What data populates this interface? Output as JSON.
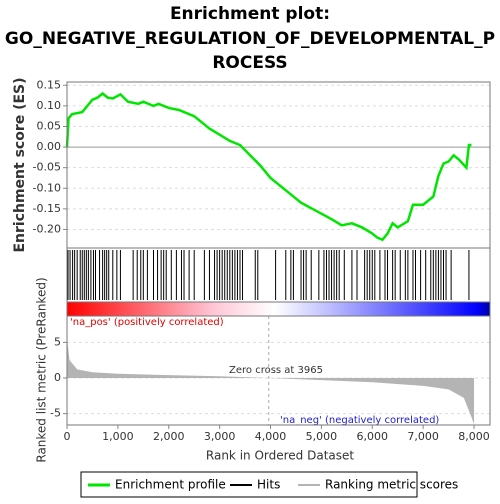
{
  "chart_data": [
    {
      "type": "line",
      "title": "Enrichment plot:",
      "subtitle": "GO_NEGATIVE_REGULATION_OF_DEVELOPMENTAL_P",
      "subtitle2": "ROCESS",
      "ylabel": "Enrichment score (ES)",
      "grid": true,
      "xlim": [
        0,
        8314
      ],
      "ylim": [
        -0.245,
        0.158
      ],
      "yticks": [
        {
          "value": 0.15,
          "label": "0.15"
        },
        {
          "value": 0.1,
          "label": "0.10"
        },
        {
          "value": 0.05,
          "label": "0.05"
        },
        {
          "value": 0,
          "label": "0.00"
        },
        {
          "value": -0.05,
          "label": "-0.05"
        },
        {
          "value": -0.1,
          "label": "-0.10"
        },
        {
          "value": -0.15,
          "label": "-0.15"
        },
        {
          "value": -0.2,
          "label": "-0.20"
        }
      ],
      "x": [
        0,
        30,
        100,
        300,
        400,
        500,
        600,
        700,
        800,
        900,
        1050,
        1200,
        1400,
        1500,
        1700,
        1800,
        2000,
        2200,
        2500,
        2800,
        3000,
        3200,
        3400,
        3600,
        3800,
        4000,
        4300,
        4600,
        4900,
        5200,
        5400,
        5600,
        5800,
        6000,
        6100,
        6200,
        6300,
        6400,
        6500,
        6700,
        6800,
        7000,
        7100,
        7200,
        7300,
        7400,
        7500,
        7600,
        7700,
        7850,
        7900,
        7950
      ],
      "series": [
        {
          "name": "Enrichment profile",
          "color": "#00e600",
          "values": [
            0,
            0.07,
            0.08,
            0.085,
            0.1,
            0.115,
            0.12,
            0.13,
            0.12,
            0.118,
            0.128,
            0.11,
            0.105,
            0.11,
            0.1,
            0.105,
            0.095,
            0.09,
            0.075,
            0.045,
            0.03,
            0.015,
            0.005,
            -0.02,
            -0.045,
            -0.075,
            -0.105,
            -0.135,
            -0.155,
            -0.175,
            -0.19,
            -0.185,
            -0.195,
            -0.21,
            -0.22,
            -0.225,
            -0.21,
            -0.185,
            -0.195,
            -0.18,
            -0.14,
            -0.14,
            -0.13,
            -0.12,
            -0.07,
            -0.04,
            -0.035,
            -0.02,
            -0.03,
            -0.05,
            0.005,
            0.005
          ]
        }
      ]
    },
    {
      "type": "rug",
      "xlim": [
        0,
        8314
      ],
      "series": [
        {
          "name": "Hits",
          "color": "#000000",
          "x": [
            20,
            60,
            110,
            150,
            200,
            260,
            300,
            340,
            380,
            420,
            470,
            520,
            560,
            640,
            700,
            740,
            780,
            820,
            900,
            980,
            1050,
            1300,
            1380,
            1450,
            1500,
            1580,
            1700,
            1780,
            1850,
            1900,
            1950,
            2050,
            2150,
            2250,
            2300,
            2400,
            2500,
            2700,
            2800,
            2900,
            2950,
            3000,
            3050,
            3100,
            3150,
            3200,
            3250,
            3300,
            3350,
            3400,
            3450,
            3700,
            3750,
            4100,
            4300,
            4400,
            4450,
            4600,
            4650,
            4700,
            4800,
            4950,
            5050,
            5100,
            5150,
            5200,
            5250,
            5300,
            5350,
            5450,
            5600,
            5700,
            5850,
            5900,
            5950,
            6000,
            6050,
            6150,
            6250,
            6300,
            6400,
            6450,
            6550,
            6650,
            6700,
            6800,
            6850,
            6950,
            7050,
            7150,
            7200,
            7250,
            7300,
            7350,
            7400,
            7450,
            7550,
            7900
          ]
        }
      ]
    },
    {
      "type": "area",
      "ylabel": "Ranked list metric (PreRanked)",
      "xlabel": "Rank in Ordered Dataset",
      "grid": true,
      "xlim": [
        0,
        8314
      ],
      "ylim": [
        -6.6,
        8.7
      ],
      "yticks": [
        5,
        0,
        -5
      ],
      "xticks": [
        0,
        {
          "value": 1000,
          "label": "1,000"
        },
        {
          "value": 2000,
          "label": "2,000"
        },
        {
          "value": 3000,
          "label": "3,000"
        },
        {
          "value": 4000,
          "label": "4,000"
        },
        {
          "value": 5000,
          "label": "5,000"
        },
        {
          "value": 6000,
          "label": "6,000"
        },
        {
          "value": 7000,
          "label": "7,000"
        },
        {
          "value": 8000,
          "label": "8,000"
        }
      ],
      "pos_label": "'na_pos' (positively correlated)",
      "neg_label": "'na_neg' (negatively correlated)",
      "zero_cross": 3965,
      "zero_cross_label": "Zero cross at 3965",
      "x": [
        0,
        50,
        200,
        500,
        1000,
        2000,
        3000,
        3965,
        5000,
        6000,
        7000,
        7500,
        7800,
        7950,
        8000
      ],
      "series": [
        {
          "name": "Ranking metric scores",
          "color": "#b4b4b4",
          "values": [
            5.5,
            2.5,
            1.2,
            0.8,
            0.6,
            0.4,
            0.25,
            0,
            -0.3,
            -0.6,
            -1.1,
            -1.6,
            -2.8,
            -5.5,
            -6.5
          ]
        }
      ]
    }
  ]
}
